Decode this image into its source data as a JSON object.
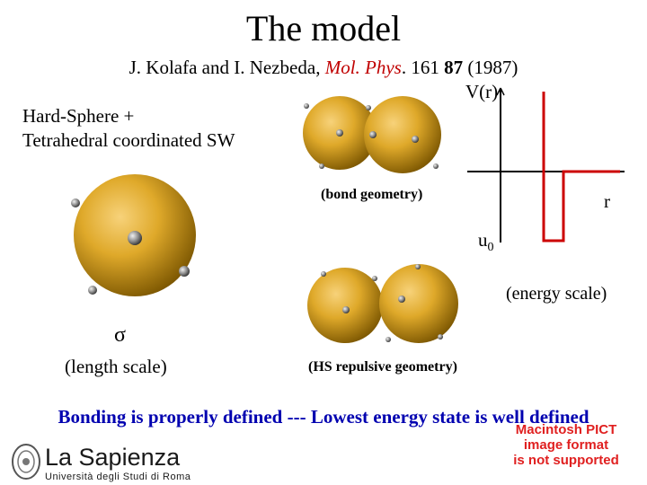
{
  "title": "The model",
  "reference": {
    "authors": "J. Kolafa and I. Nezbeda,",
    "journal": "Mol. Phys",
    "dot": ".",
    "volume_pre": "161",
    "volume_bold": "87",
    "year": "(1987)"
  },
  "model_description": {
    "line1": "Hard-Sphere +",
    "line2": "Tetrahedral coordinated SW"
  },
  "potential_plot": {
    "y_label": "V(r)",
    "x_label": "r",
    "well_label": "u",
    "well_sub": "0",
    "line_color": "#cc0000"
  },
  "labels": {
    "bond_geometry": "(bond geometry)",
    "energy_scale": "(energy scale)",
    "sigma": "σ",
    "length_scale": "(length scale)",
    "hs_geometry": "(HS repulsive geometry)"
  },
  "bottom_statement": "Bonding is properly defined  ---  Lowest energy state is well defined",
  "pict_message": {
    "line1": "Macintosh PICT",
    "line2": "image format",
    "line3": "is not supported"
  },
  "logo": {
    "name": "La Sapienza",
    "subtitle": "Università degli Studi di Roma"
  },
  "colors": {
    "sphere": "#d4a020",
    "patch": "#8a8a8a",
    "accent_text": "#0000b0",
    "journal": "#c00000"
  }
}
